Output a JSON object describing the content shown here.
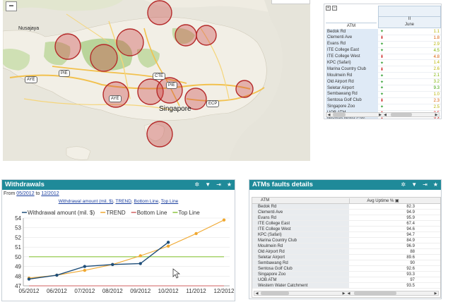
{
  "map": {
    "zoom_out_label": "−",
    "labels": {
      "nusajaya": "Nusajaya",
      "singapore": "Singapore",
      "aye": "AYE",
      "pie": "PIE",
      "ecp": "ECP",
      "cte": "CTE"
    }
  },
  "atm_table": {
    "header_period": "II",
    "header_month": "June",
    "header_atm": "ATM",
    "rows": [
      {
        "name": "Bedok Rd",
        "trend": "up",
        "value": "1.1",
        "color": "#b7b300"
      },
      {
        "name": "Clementi Ave",
        "trend": "down",
        "value": "1.8",
        "color": "#d85a00"
      },
      {
        "name": "Evans Rd",
        "trend": "up",
        "value": "2.9",
        "color": "#b7b300"
      },
      {
        "name": "ITE College East",
        "trend": "up",
        "value": "4.5",
        "color": "#7cb300"
      },
      {
        "name": "ITE College West",
        "trend": "down",
        "value": "4.8",
        "color": "#d85a00"
      },
      {
        "name": "KPC (Safari)",
        "trend": "up",
        "value": "1.4",
        "color": "#b7b300"
      },
      {
        "name": "Marina Country Club",
        "trend": "down",
        "value": "2.6",
        "color": "#b7b300"
      },
      {
        "name": "Moulmein Rd",
        "trend": "up",
        "value": "2.1",
        "color": "#7cb300"
      },
      {
        "name": "Old Airport Rd",
        "trend": "up",
        "value": "3.2",
        "color": "#7cb300"
      },
      {
        "name": "Seletar Airport",
        "trend": "up",
        "value": "9.3",
        "color": "#3aa000"
      },
      {
        "name": "Sembawang Rd",
        "trend": "up",
        "value": "1.0",
        "color": "#b7b300"
      },
      {
        "name": "Sentosa Golf Club",
        "trend": "down",
        "value": "2.3",
        "color": "#d85a00"
      },
      {
        "name": "Singapore Zoo",
        "trend": "up",
        "value": "2.5",
        "color": "#b7b300"
      },
      {
        "name": "UOB ATM",
        "trend": "down",
        "value": "3.5",
        "color": "#d80000"
      },
      {
        "name": "Western Water Catc",
        "trend": "down",
        "value": "3.4",
        "color": "#d80000"
      }
    ]
  },
  "withdrawals": {
    "title": "Withdrawals",
    "from_prefix": "From ",
    "from_date": "05/2012",
    "to_word": " to ",
    "to_date": "12/2012",
    "links": [
      "Withdrawal amount (mil. $)",
      "TREND",
      "Bottom Line",
      "Top Line"
    ],
    "link_sep": ", "
  },
  "chart_data": {
    "type": "line",
    "categories": [
      "05/2012",
      "06/2012",
      "07/2012",
      "08/2012",
      "09/2012",
      "10/2012",
      "11/2012",
      "12/2012"
    ],
    "ylim": [
      47,
      54
    ],
    "yticks": [
      47,
      48,
      49,
      50,
      51,
      52,
      53,
      54
    ],
    "series": [
      {
        "name": "Withdrawal amount (mil. $)",
        "color": "#1f4e79",
        "values": [
          47.7,
          48.1,
          49.0,
          49.2,
          49.3,
          51.5,
          null,
          null
        ]
      },
      {
        "name": "TREND",
        "color": "#f0a830",
        "values": [
          47.8,
          48.1,
          48.6,
          49.2,
          50.1,
          51.1,
          52.4,
          53.8
        ]
      },
      {
        "name": "Bottom Line",
        "color": "#d06060",
        "values": [
          47,
          47,
          47,
          47,
          47,
          47,
          47,
          47
        ]
      },
      {
        "name": "Top Line",
        "color": "#8cc63f",
        "values": [
          50,
          50,
          50,
          50,
          50,
          50,
          50,
          50
        ]
      }
    ]
  },
  "faults": {
    "title": "ATMs faults details",
    "col_atm": "ATM",
    "col_uptime": "Avg Uptime %",
    "rows": [
      {
        "name": "Bedok Rd",
        "value": "82.3"
      },
      {
        "name": "Clementi Ave",
        "value": "94.9"
      },
      {
        "name": "Evans Rd",
        "value": "95.9"
      },
      {
        "name": "ITE College East",
        "value": "67.4"
      },
      {
        "name": "ITE College West",
        "value": "94.6"
      },
      {
        "name": "KPC (Safari)",
        "value": "94.7"
      },
      {
        "name": "Marina Country Club",
        "value": "84.9"
      },
      {
        "name": "Moulmein Rd",
        "value": "96.9"
      },
      {
        "name": "Old Airport Rd",
        "value": "88"
      },
      {
        "name": "Seletar Airport",
        "value": "89.6"
      },
      {
        "name": "Sembawang Rd",
        "value": "90"
      },
      {
        "name": "Sentosa Golf Club",
        "value": "92.6"
      },
      {
        "name": "Singapore Zoo",
        "value": "93.3"
      },
      {
        "name": "UOB ATM",
        "value": "97"
      },
      {
        "name": "Western Water Catchment",
        "value": "93.5"
      }
    ]
  }
}
